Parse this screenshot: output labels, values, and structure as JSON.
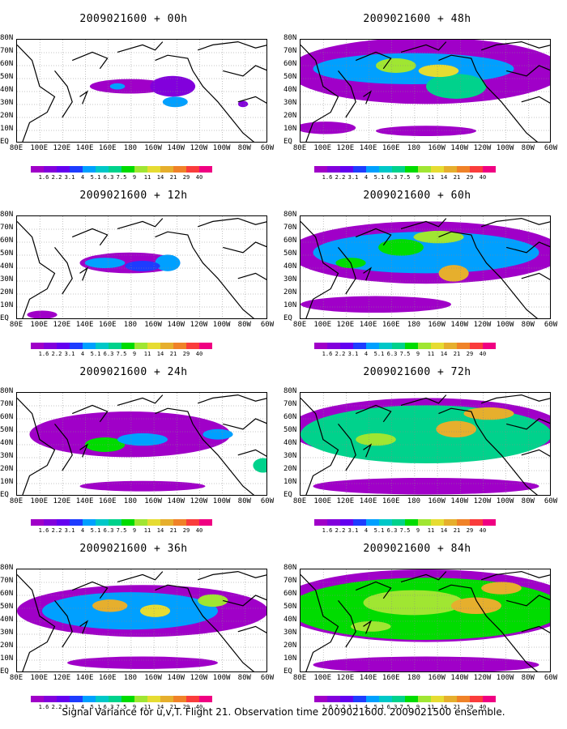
{
  "colorbar": {
    "labels": [
      "1.6",
      "2.2",
      "3.1",
      "4",
      "5.1",
      "6.3",
      "7.5",
      "9",
      "11",
      "14",
      "21",
      "29",
      "40"
    ],
    "colors": [
      "#a000c8",
      "#8200dc",
      "#1e3cff",
      "#00a0ff",
      "#00c8c8",
      "#00d28c",
      "#00dc00",
      "#a0e632",
      "#e6dc32",
      "#e6af2d",
      "#f08228",
      "#fa3c3c",
      "#f00082"
    ]
  },
  "lat_labels": [
    "80N",
    "70N",
    "60N",
    "50N",
    "40N",
    "30N",
    "20N",
    "10N",
    "EQ"
  ],
  "lon_labels": [
    "80E",
    "100E",
    "120E",
    "140E",
    "160E",
    "180",
    "160W",
    "140W",
    "120W",
    "100W",
    "80W",
    "60W"
  ],
  "panels": [
    {
      "title": "2009021600 + 00h"
    },
    {
      "title": "2009021600 + 48h"
    },
    {
      "title": "2009021600 + 12h"
    },
    {
      "title": "2009021600 + 60h"
    },
    {
      "title": "2009021600 + 24h"
    },
    {
      "title": "2009021600 + 72h"
    },
    {
      "title": "2009021600 + 36h"
    },
    {
      "title": "2009021600 + 84h"
    }
  ],
  "caption": "Signal Variance for u,v,T. Flight 21. Observation time 2009021600. 2009021500 ensemble."
}
